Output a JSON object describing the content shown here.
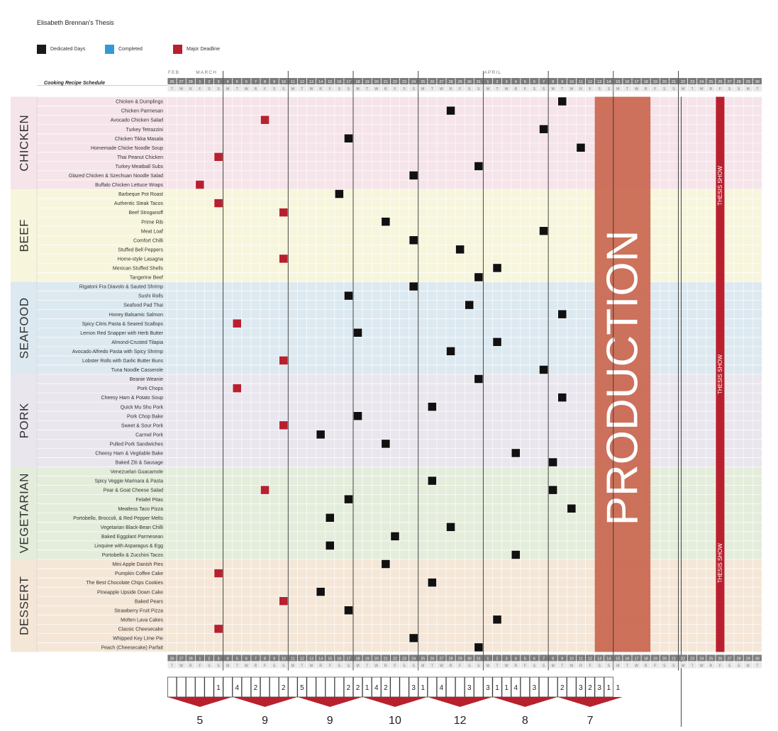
{
  "title": "Elisabeth Brennan's Thesis",
  "legend": [
    {
      "label": "Dedicated Days",
      "color": "#1a1a1a"
    },
    {
      "label": "Completed",
      "color": "#3399d6"
    },
    {
      "label": "Major Deadline",
      "color": "#b8202e"
    }
  ],
  "chart_data": {
    "type": "table",
    "title": "Cooking Recipe Schedule",
    "months": [
      {
        "label": "FEB",
        "start_index": 0
      },
      {
        "label": "MARCH",
        "start_index": 3
      },
      {
        "label": "APRIL",
        "start_index": 34
      }
    ],
    "dates": [
      "26",
      "27",
      "28",
      "1",
      "2",
      "3",
      "4",
      "5",
      "6",
      "7",
      "8",
      "9",
      "10",
      "11",
      "12",
      "13",
      "14",
      "15",
      "16",
      "17",
      "18",
      "19",
      "20",
      "21",
      "22",
      "23",
      "24",
      "25",
      "26",
      "27",
      "28",
      "29",
      "30",
      "31",
      "1",
      "2",
      "3",
      "4",
      "5",
      "6",
      "7",
      "8",
      "9",
      "10",
      "11",
      "12",
      "13",
      "14",
      "15",
      "16",
      "17",
      "18",
      "19",
      "20",
      "21",
      "22",
      "23",
      "24",
      "25",
      "26",
      "27",
      "28",
      "29",
      "30"
    ],
    "weekdays": [
      "T",
      "W",
      "R",
      "F",
      "S",
      "S",
      "M"
    ],
    "categories": [
      {
        "name": "CHICKEN",
        "color": "#f5e4ea",
        "items": [
          "Chicken & Dumplings",
          "Chicken Parmesan",
          "Avocado Chicken Salad",
          "Turkey Tetrazzini",
          "Chicken Tikka Masala",
          "Homemade Chicke Noodle Soup",
          "Thai Peanut Chicken",
          "Turkey Meatball Subs",
          "Glazed Chicken & Szechuan Noodle Salad",
          "Buffalo Chicken Lettuce Wraps"
        ]
      },
      {
        "name": "BEEF",
        "color": "#f7f6dd",
        "items": [
          "Barbeque Pot Roast",
          "Authentic Steak Tacos",
          "Beef Stroganoff",
          "Prime Rib",
          "Meat Loaf",
          "Comfort Chilli",
          "Stuffed Bell Peppers",
          "Home-style Lasagna",
          "Mexican Stuffed Shells",
          "Tangerine Beef"
        ]
      },
      {
        "name": "SEAFOOD",
        "color": "#dde9f0",
        "items": [
          "Rigatoni Fra Diavolo & Sauted Shrimp",
          "Sushi Rolls",
          "Seafood Pad Thai",
          "Honey Balsamic Salmon",
          "Spicy Citris Pasta & Seared Scallops",
          "Lemon Red Snapper with Herb Butter",
          "Almond-Crusted Tilapia",
          "Avocado Alfredo Pasta with Spicy Shrimp",
          "Lobster Rolls with Garlic Butter Buns",
          "Tuna Noodle Casserole"
        ]
      },
      {
        "name": "PORK",
        "color": "#e9e6ee",
        "items": [
          "Beanie Weanie",
          "Pork Chops",
          "Cheesy Ham & Potato Soup",
          "Quick Mu Shu Pork",
          "Pork Chop Bake",
          "Sweet & Sour Pork",
          "Carmel Pork",
          "Pulled Pork Sandwiches",
          "Cheesy Ham & Vegitable Bake",
          "Baked Ziti & Sausage"
        ]
      },
      {
        "name": "VEGETARIAN",
        "color": "#e4eddb",
        "items": [
          "Venezuelan Guacamole",
          "Spicy Veggie Marinara & Pasta",
          "Pear & Goat Cheese Salad",
          "Felafel Pitas",
          "Meatless Taco Pizza",
          "Portobello, Broccoli, & Red Pepper Melts",
          "Vegetarian Black-Bean Chilli",
          "Baked Eggplant Parmesean",
          "Linquine with Asparagus & Egg",
          "Portobello & Zucchini Tacos"
        ]
      },
      {
        "name": "DESSERT",
        "color": "#f5e7d8",
        "items": [
          "Mini Apple Danish Pies",
          "Pumpkin Coffee Cake",
          "The Best Chocolate Chips Cookies",
          "Pineapple Upside Down Cake",
          "Baked Pears",
          "Strawberry Fruit Pizza",
          "Molten Lava Cakes",
          "Classic Cheesecake",
          "Whipped Key Lime Pie",
          "Peach (Cheesecake) Parfait"
        ]
      }
    ],
    "marks": [
      {
        "row": 0,
        "day": 42,
        "kind": "dedicated"
      },
      {
        "row": 1,
        "day": 30,
        "kind": "dedicated"
      },
      {
        "row": 2,
        "day": 10,
        "kind": "deadline"
      },
      {
        "row": 3,
        "day": 40,
        "kind": "dedicated"
      },
      {
        "row": 4,
        "day": 19,
        "kind": "dedicated"
      },
      {
        "row": 5,
        "day": 44,
        "kind": "dedicated"
      },
      {
        "row": 6,
        "day": 5,
        "kind": "deadline"
      },
      {
        "row": 7,
        "day": 33,
        "kind": "dedicated"
      },
      {
        "row": 8,
        "day": 26,
        "kind": "dedicated"
      },
      {
        "row": 9,
        "day": 3,
        "kind": "deadline"
      },
      {
        "row": 10,
        "day": 18,
        "kind": "dedicated"
      },
      {
        "row": 11,
        "day": 5,
        "kind": "deadline"
      },
      {
        "row": 12,
        "day": 12,
        "kind": "deadline"
      },
      {
        "row": 13,
        "day": 23,
        "kind": "dedicated"
      },
      {
        "row": 14,
        "day": 40,
        "kind": "dedicated"
      },
      {
        "row": 15,
        "day": 26,
        "kind": "dedicated"
      },
      {
        "row": 16,
        "day": 31,
        "kind": "dedicated"
      },
      {
        "row": 17,
        "day": 12,
        "kind": "deadline"
      },
      {
        "row": 18,
        "day": 35,
        "kind": "dedicated"
      },
      {
        "row": 19,
        "day": 33,
        "kind": "dedicated"
      },
      {
        "row": 20,
        "day": 26,
        "kind": "dedicated"
      },
      {
        "row": 21,
        "day": 19,
        "kind": "dedicated"
      },
      {
        "row": 22,
        "day": 32,
        "kind": "dedicated"
      },
      {
        "row": 23,
        "day": 42,
        "kind": "dedicated"
      },
      {
        "row": 24,
        "day": 7,
        "kind": "deadline"
      },
      {
        "row": 25,
        "day": 20,
        "kind": "dedicated"
      },
      {
        "row": 26,
        "day": 35,
        "kind": "dedicated"
      },
      {
        "row": 27,
        "day": 30,
        "kind": "dedicated"
      },
      {
        "row": 28,
        "day": 12,
        "kind": "deadline"
      },
      {
        "row": 29,
        "day": 40,
        "kind": "dedicated"
      },
      {
        "row": 30,
        "day": 33,
        "kind": "dedicated"
      },
      {
        "row": 31,
        "day": 7,
        "kind": "deadline"
      },
      {
        "row": 32,
        "day": 42,
        "kind": "dedicated"
      },
      {
        "row": 33,
        "day": 28,
        "kind": "dedicated"
      },
      {
        "row": 34,
        "day": 20,
        "kind": "dedicated"
      },
      {
        "row": 35,
        "day": 12,
        "kind": "deadline"
      },
      {
        "row": 36,
        "day": 16,
        "kind": "dedicated"
      },
      {
        "row": 37,
        "day": 23,
        "kind": "dedicated"
      },
      {
        "row": 38,
        "day": 37,
        "kind": "dedicated"
      },
      {
        "row": 39,
        "day": 41,
        "kind": "dedicated"
      },
      {
        "row": 41,
        "day": 28,
        "kind": "dedicated"
      },
      {
        "row": 42,
        "day": 10,
        "kind": "deadline"
      },
      {
        "row": 42,
        "day": 41,
        "kind": "dedicated"
      },
      {
        "row": 43,
        "day": 19,
        "kind": "dedicated"
      },
      {
        "row": 44,
        "day": 43,
        "kind": "dedicated"
      },
      {
        "row": 45,
        "day": 17,
        "kind": "dedicated"
      },
      {
        "row": 46,
        "day": 30,
        "kind": "dedicated"
      },
      {
        "row": 47,
        "day": 24,
        "kind": "dedicated"
      },
      {
        "row": 48,
        "day": 17,
        "kind": "dedicated"
      },
      {
        "row": 49,
        "day": 37,
        "kind": "dedicated"
      },
      {
        "row": 50,
        "day": 23,
        "kind": "dedicated"
      },
      {
        "row": 51,
        "day": 5,
        "kind": "deadline"
      },
      {
        "row": 52,
        "day": 28,
        "kind": "dedicated"
      },
      {
        "row": 53,
        "day": 16,
        "kind": "dedicated"
      },
      {
        "row": 54,
        "day": 12,
        "kind": "deadline"
      },
      {
        "row": 55,
        "day": 19,
        "kind": "dedicated"
      },
      {
        "row": 56,
        "day": 35,
        "kind": "dedicated"
      },
      {
        "row": 57,
        "day": 5,
        "kind": "deadline"
      },
      {
        "row": 58,
        "day": 26,
        "kind": "dedicated"
      },
      {
        "row": 59,
        "day": 33,
        "kind": "dedicated"
      }
    ],
    "production": {
      "label": "PRODUCTION",
      "start_day": 46,
      "end_day": 52,
      "color": "#c9664f"
    },
    "thesis_show": {
      "label": "THESIS SHOW",
      "day": 59,
      "color": "#b8202e"
    },
    "daily_counts": [
      {
        "day": 5,
        "count": "1"
      },
      {
        "day": 7,
        "count": "4"
      },
      {
        "day": 9,
        "count": "2"
      },
      {
        "day": 12,
        "count": "2"
      },
      {
        "day": 14,
        "count": "5"
      },
      {
        "day": 19,
        "count": "2"
      },
      {
        "day": 20,
        "count": "2"
      },
      {
        "day": 21,
        "count": "1"
      },
      {
        "day": 22,
        "count": "4"
      },
      {
        "day": 23,
        "count": "2"
      },
      {
        "day": 26,
        "count": "3"
      },
      {
        "day": 27,
        "count": "1"
      },
      {
        "day": 29,
        "count": "4"
      },
      {
        "day": 32,
        "count": "3"
      },
      {
        "day": 34,
        "count": "3"
      },
      {
        "day": 35,
        "count": "1"
      },
      {
        "day": 36,
        "count": "1"
      },
      {
        "day": 37,
        "count": "4"
      },
      {
        "day": 39,
        "count": "3"
      },
      {
        "day": 42,
        "count": "2"
      },
      {
        "day": 44,
        "count": "3"
      },
      {
        "day": 45,
        "count": "2"
      },
      {
        "day": 46,
        "count": "3"
      },
      {
        "day": 47,
        "count": "1"
      },
      {
        "day": 48,
        "count": "1"
      }
    ],
    "weekly_totals": [
      "5",
      "9",
      "9",
      "10",
      "12",
      "8",
      "7"
    ]
  }
}
